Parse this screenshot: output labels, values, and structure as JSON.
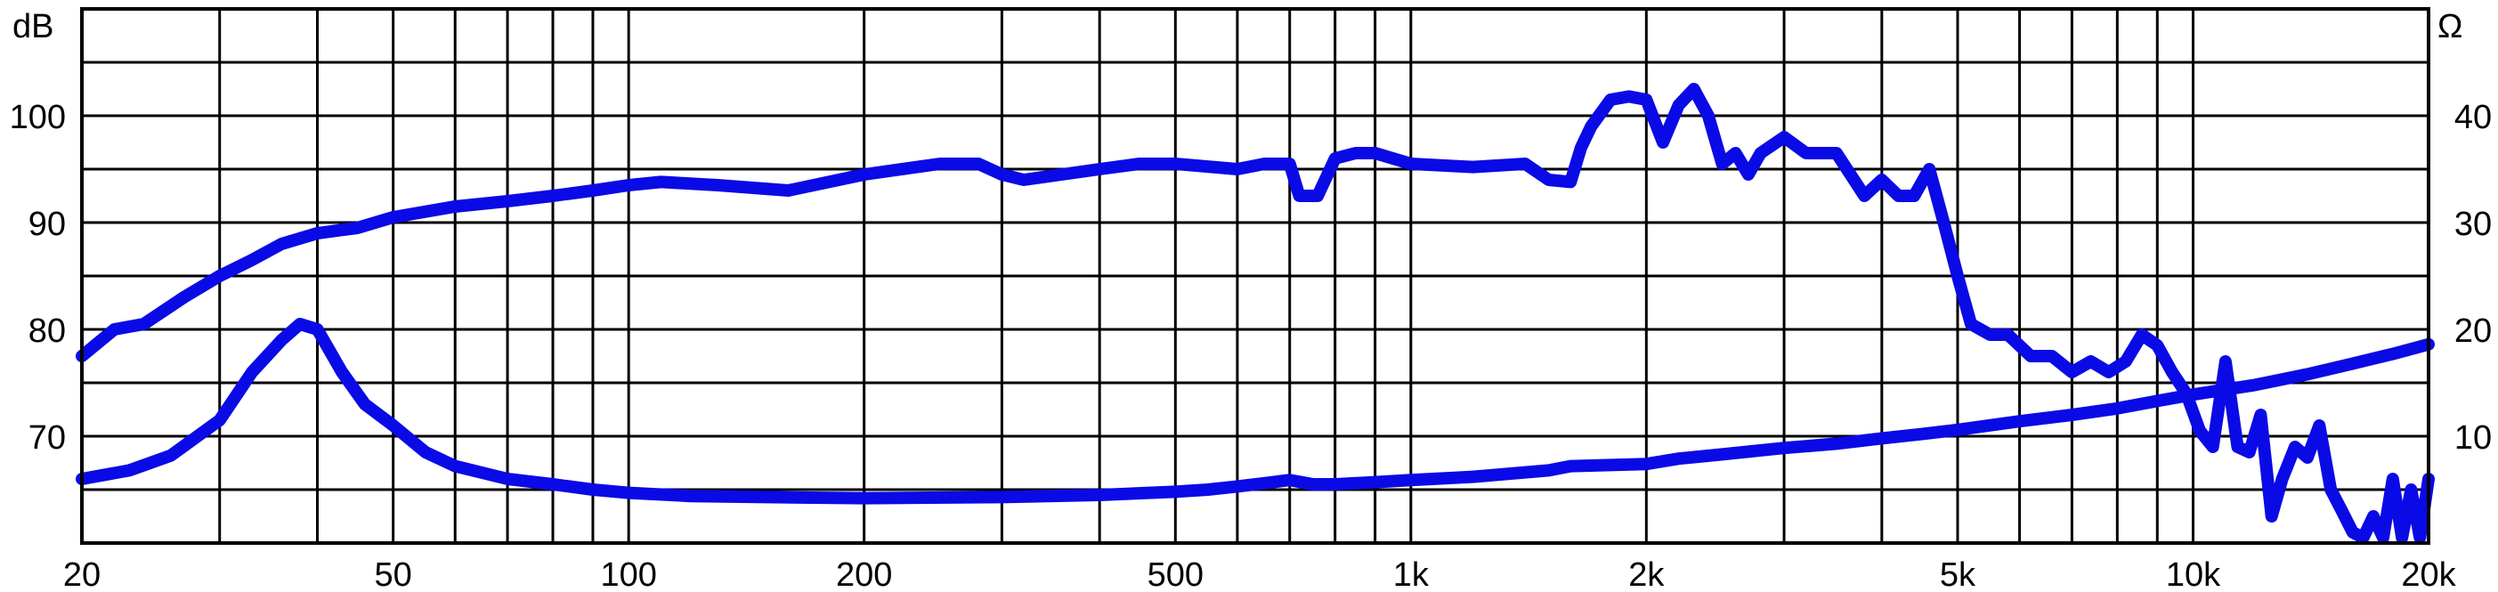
{
  "chart_data": {
    "type": "line",
    "xscale": "log",
    "xlim": [
      20,
      20000
    ],
    "grid": true,
    "x_ticks": [
      {
        "value": 20,
        "label": "20"
      },
      {
        "value": 50,
        "label": "50"
      },
      {
        "value": 100,
        "label": "100"
      },
      {
        "value": 200,
        "label": "200"
      },
      {
        "value": 500,
        "label": "500"
      },
      {
        "value": 1000,
        "label": "1k"
      },
      {
        "value": 2000,
        "label": "2k"
      },
      {
        "value": 5000,
        "label": "5k"
      },
      {
        "value": 10000,
        "label": "10k"
      },
      {
        "value": 20000,
        "label": "20k"
      }
    ],
    "y_left": {
      "unit_label": "dB",
      "ylim": [
        60,
        110
      ],
      "ticks": [
        {
          "value": 70,
          "label": "70"
        },
        {
          "value": 80,
          "label": "80"
        },
        {
          "value": 90,
          "label": "90"
        },
        {
          "value": 100,
          "label": "100"
        }
      ]
    },
    "y_right": {
      "unit_label": "Ω",
      "ylim": [
        0,
        50
      ],
      "ticks": [
        {
          "value": 10,
          "label": "10"
        },
        {
          "value": 20,
          "label": "20"
        },
        {
          "value": 30,
          "label": "30"
        },
        {
          "value": 40,
          "label": "40"
        }
      ]
    },
    "series_color": "#0a0ae6",
    "series": [
      {
        "axis": "left",
        "x": [
          20,
          22,
          24,
          27,
          30,
          33,
          36,
          40,
          45,
          50,
          60,
          70,
          80,
          90,
          100,
          110,
          130,
          160,
          200,
          250,
          280,
          300,
          320,
          400,
          450,
          500,
          600,
          650,
          700,
          720,
          760,
          800,
          850,
          900,
          1000,
          1200,
          1400,
          1500,
          1600,
          1650,
          1700,
          1800,
          1900,
          2000,
          2100,
          2200,
          2300,
          2400,
          2500,
          2600,
          2700,
          2800,
          3000,
          3200,
          3500,
          3800,
          4000,
          4200,
          4400,
          4600,
          4800,
          5000,
          5200,
          5500,
          5800,
          6200,
          6600,
          7000,
          7400,
          7800,
          8200,
          8600,
          9000,
          9400,
          9800
        ],
        "values": [
          77.5,
          80,
          80.5,
          83,
          85,
          86.5,
          88,
          89,
          89.5,
          90.5,
          91.5,
          92,
          92.5,
          93,
          93.5,
          93.8,
          93.5,
          93,
          94.5,
          95.5,
          95.5,
          94.5,
          94,
          95,
          95.5,
          95.5,
          95,
          95.5,
          95.5,
          92.5,
          92.5,
          96,
          96.5,
          96.5,
          95.5,
          95.2,
          95.5,
          94,
          93.8,
          97,
          99,
          101.5,
          101.8,
          101.5,
          97.5,
          101,
          102.5,
          100,
          95.5,
          96.5,
          94.5,
          96.5,
          98,
          96.5,
          96.5,
          92.5,
          94,
          92.5,
          92.5,
          95,
          90,
          85,
          80.5,
          79.5,
          79.5,
          77.5,
          77.5,
          76,
          77,
          76,
          77,
          79.5,
          78.5,
          76,
          74
        ]
      },
      {
        "axis": "right",
        "x": [
          20,
          23,
          26,
          30,
          33,
          36,
          38,
          40,
          43,
          46,
          50,
          55,
          60,
          70,
          80,
          90,
          100,
          120,
          150,
          200,
          300,
          400,
          500,
          550,
          600,
          650,
          700,
          750,
          800,
          900,
          1000,
          1200,
          1500,
          1600,
          1800,
          2000,
          2200,
          2500,
          3000,
          3500,
          4000,
          4500,
          5000,
          6000,
          7000,
          8000,
          9000,
          10000,
          12000,
          14000,
          16000,
          18000,
          20000
        ],
        "values": [
          6,
          6.8,
          8.2,
          11.5,
          16,
          19,
          20.5,
          20,
          16,
          13,
          11,
          8.5,
          7.2,
          6,
          5.5,
          5,
          4.7,
          4.4,
          4.3,
          4.2,
          4.3,
          4.5,
          4.8,
          5,
          5.3,
          5.6,
          5.9,
          5.5,
          5.5,
          5.7,
          5.9,
          6.2,
          6.8,
          7.2,
          7.3,
          7.4,
          7.9,
          8.3,
          8.9,
          9.3,
          9.8,
          10.2,
          10.6,
          11.4,
          12,
          12.6,
          13.3,
          13.9,
          14.8,
          15.8,
          16.8,
          17.7,
          18.6
        ]
      },
      {
        "axis": "right",
        "x": [
          9800,
          10200,
          10600,
          11000,
          11400,
          11800,
          12200,
          12600,
          13000,
          13500,
          14000,
          14500,
          15000,
          15500,
          16000,
          16500,
          17000,
          17500,
          18000,
          18500,
          19000,
          19500,
          20000
        ],
        "values": [
          14,
          10.5,
          9,
          17,
          9,
          8.5,
          12,
          2.5,
          6,
          9,
          8,
          11,
          5,
          3,
          1,
          0.5,
          2.5,
          0.5,
          6,
          0.5,
          5,
          0.5,
          6
        ]
      }
    ]
  }
}
